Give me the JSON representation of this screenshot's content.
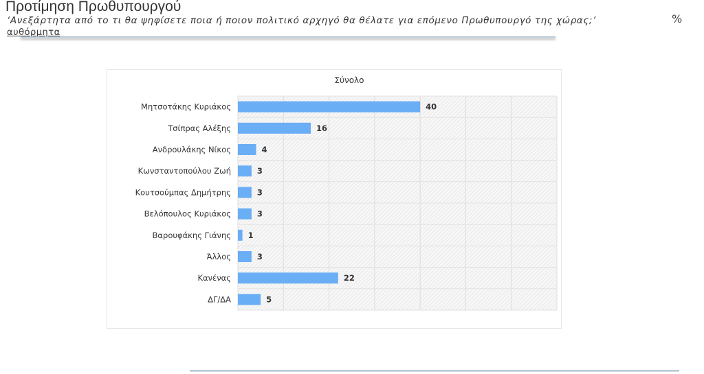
{
  "header": {
    "title": "Προτίμηση Πρωθυπουργού",
    "subtitle": "‘Ανεξάρτητα από το τι θα ψηφίσετε ποια ή ποιον πολιτικό αρχηγό θα θέλατε για επόμενο Πρωθυπουργό της χώρας;’",
    "note": "αυθόρμητα",
    "unit": "%"
  },
  "chart_data": {
    "type": "bar",
    "orientation": "horizontal",
    "title": "Σύνολο",
    "categories": [
      "Μητσοτάκης Κυριάκος",
      "Τσίπρας Αλέξης",
      "Ανδρουλάκης Νίκος",
      "Κωνσταντοπούλου Ζωή",
      "Κουτσούμπας Δημήτρης",
      "Βελόπουλος Κυριάκος",
      "Βαρουφάκης Γιάνης",
      "Άλλος",
      "Κανένας",
      "ΔΓ/ΔΑ"
    ],
    "values": [
      40,
      16,
      4,
      3,
      3,
      3,
      1,
      3,
      22,
      5
    ],
    "xlim": [
      0,
      70
    ],
    "grid": true,
    "bar_color": "#6aaef5"
  }
}
